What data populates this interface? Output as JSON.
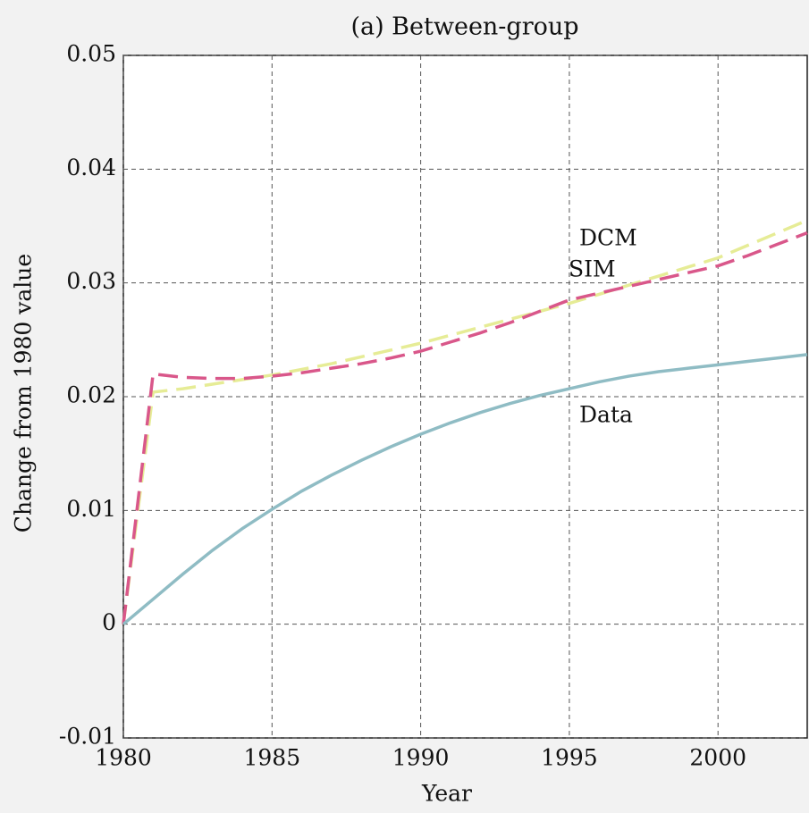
{
  "chart_data": {
    "type": "line",
    "title": "(a) Between-group",
    "x_label": "Year",
    "y_label": "Change from 1980 value",
    "x": [
      1980,
      1981,
      1982,
      1983,
      1984,
      1985,
      1986,
      1987,
      1988,
      1989,
      1990,
      1991,
      1992,
      1993,
      1994,
      1995,
      1996,
      1997,
      1998,
      1999,
      2000,
      2001,
      2002,
      2003
    ],
    "series": [
      {
        "name": "SIM",
        "color": "#e6ec96",
        "dash": true,
        "values": [
          0,
          0.0204,
          0.0207,
          0.0211,
          0.0215,
          0.0219,
          0.0224,
          0.0229,
          0.0235,
          0.0241,
          0.0247,
          0.0254,
          0.0261,
          0.0268,
          0.0275,
          0.0282,
          0.029,
          0.0298,
          0.0306,
          0.0314,
          0.0322,
          0.0333,
          0.0344,
          0.0355
        ]
      },
      {
        "name": "DCM",
        "color": "#d9578a",
        "dash": true,
        "values": [
          0,
          0.022,
          0.0217,
          0.0216,
          0.0216,
          0.0218,
          0.0221,
          0.0225,
          0.0229,
          0.0234,
          0.024,
          0.0248,
          0.0256,
          0.0265,
          0.0275,
          0.0285,
          0.0291,
          0.0297,
          0.0303,
          0.0309,
          0.0315,
          0.0324,
          0.0334,
          0.0344
        ]
      },
      {
        "name": "Data",
        "color": "#8fbcc4",
        "dash": false,
        "values": [
          0,
          0.0022,
          0.0044,
          0.0065,
          0.0084,
          0.0101,
          0.0117,
          0.0131,
          0.0144,
          0.0156,
          0.0167,
          0.0177,
          0.0186,
          0.0194,
          0.0201,
          0.0207,
          0.0213,
          0.0218,
          0.0222,
          0.0225,
          0.0228,
          0.0231,
          0.0234,
          0.0237
        ]
      }
    ],
    "xlim": [
      1980,
      2003
    ],
    "xticks": [
      1980,
      1985,
      1990,
      1995,
      2000
    ],
    "ylim": [
      -0.01,
      0.05
    ],
    "yticks": [
      -0.01,
      0,
      0.01,
      0.02,
      0.03,
      0.04,
      0.05
    ],
    "grid": true
  }
}
